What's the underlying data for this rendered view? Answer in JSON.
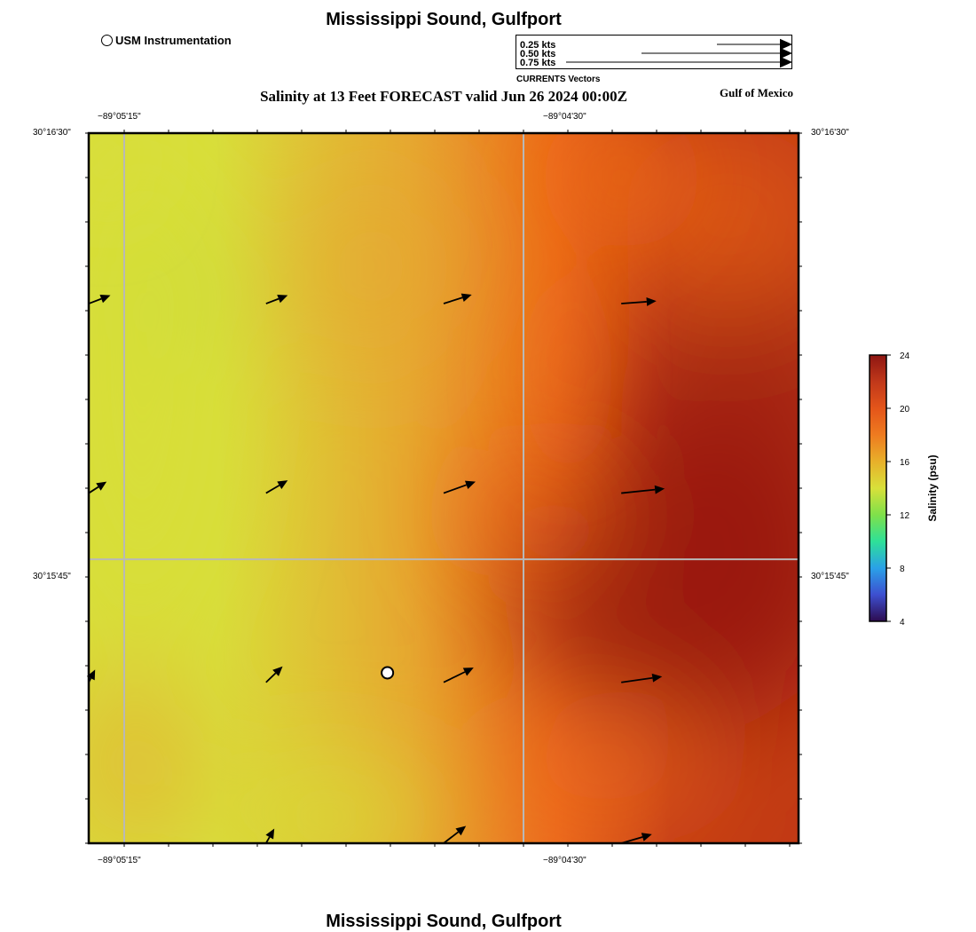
{
  "header": {
    "title": "Mississippi Sound, Gulfport",
    "subtitle": "Salinity at 13 Feet FORECAST valid Jun 26 2024 00:00Z",
    "region_label": "Gulf of Mexico"
  },
  "footer": {
    "title": "Mississippi Sound, Gulfport"
  },
  "symbol_legend": {
    "label": "USM Instrumentation",
    "icon": "circle-marker-icon"
  },
  "vector_legend": {
    "rows": [
      {
        "label": "0.25 kts",
        "speed": 0.25
      },
      {
        "label": "0.50 kts",
        "speed": 0.5
      },
      {
        "label": "0.75 kts",
        "speed": 0.75
      }
    ],
    "caption": "CURRENTS Vectors"
  },
  "map": {
    "lon_ticks": [
      {
        "label": "−89°05'15\"",
        "deg": -89.0875
      },
      {
        "label": "−89°04'30\"",
        "deg": -89.075
      }
    ],
    "lat_ticks": [
      {
        "label": "30°16'30\"",
        "deg": 30.275
      },
      {
        "label": "30°15'45\"",
        "deg": 30.2625
      }
    ],
    "extent": {
      "lon_min": -89.08861,
      "lon_max": -89.06639,
      "lat_min": 30.25417,
      "lat_max": 30.275
    },
    "instrument": {
      "lon": -89.07926,
      "lat": 30.25917
    },
    "current_vectors": [
      {
        "lon": -89.08861,
        "lat": 30.27,
        "u": 0.34,
        "v": 0.13
      },
      {
        "lon": -89.08306,
        "lat": 30.27,
        "u": 0.34,
        "v": 0.13
      },
      {
        "lon": -89.0775,
        "lat": 30.27,
        "u": 0.44,
        "v": 0.14
      },
      {
        "lon": -89.07194,
        "lat": 30.27,
        "u": 0.55,
        "v": 0.04
      },
      {
        "lon": -89.08861,
        "lat": 30.26444,
        "u": 0.28,
        "v": 0.18
      },
      {
        "lon": -89.08306,
        "lat": 30.26444,
        "u": 0.34,
        "v": 0.2
      },
      {
        "lon": -89.0775,
        "lat": 30.26444,
        "u": 0.5,
        "v": 0.18
      },
      {
        "lon": -89.07194,
        "lat": 30.26444,
        "u": 0.68,
        "v": 0.07
      },
      {
        "lon": -89.08861,
        "lat": 30.25889,
        "u": 0.1,
        "v": 0.2
      },
      {
        "lon": -89.08306,
        "lat": 30.25889,
        "u": 0.26,
        "v": 0.25
      },
      {
        "lon": -89.0775,
        "lat": 30.25889,
        "u": 0.47,
        "v": 0.23
      },
      {
        "lon": -89.07194,
        "lat": 30.25889,
        "u": 0.64,
        "v": 0.09
      },
      {
        "lon": -89.08306,
        "lat": 30.25417,
        "u": 0.13,
        "v": 0.23
      },
      {
        "lon": -89.0775,
        "lat": 30.25417,
        "u": 0.35,
        "v": 0.27
      },
      {
        "lon": -89.07194,
        "lat": 30.25417,
        "u": 0.48,
        "v": 0.14
      }
    ]
  },
  "colorbar": {
    "label": "Salinity (psu)",
    "min": 4,
    "max": 24,
    "ticks": [
      "24",
      "20",
      "16",
      "12",
      "8",
      "4"
    ],
    "colors": [
      "#2d0b4f",
      "#3d4fd0",
      "#2aa1e8",
      "#2ee098",
      "#7fe04a",
      "#d8e03a",
      "#e8b02a",
      "#ee7b20",
      "#e4551a",
      "#c0381a",
      "#8e1612"
    ]
  },
  "salinity_colors": {
    "yellow": "#d8de3a",
    "gold": "#e6a830",
    "orange": "#ec6a1a",
    "red": "#c23a14",
    "dark_red": "#98170a"
  }
}
